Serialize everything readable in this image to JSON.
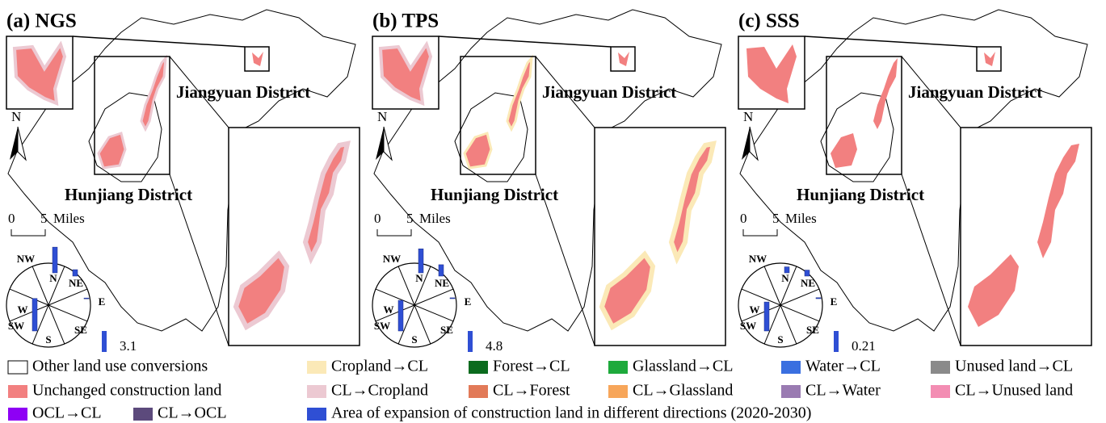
{
  "panels": [
    {
      "title": "(a) NGS",
      "district_north": "Jiangyuan District",
      "district_south": "Hunjiang District",
      "north": "N",
      "scale_start": 0,
      "scale_end": 5,
      "scale_unit": "Miles",
      "directions": [
        "NW",
        "N",
        "NE",
        "E",
        "SE",
        "S",
        "SW",
        "W"
      ],
      "expansion": [
        null,
        3.8,
        0.95,
        0.1,
        null,
        null,
        null,
        4.8
      ],
      "reference": 3.1
    },
    {
      "title": "(b) TPS",
      "district_north": "Jiangyuan District",
      "district_south": "Hunjiang District",
      "north": "N",
      "scale_start": 0,
      "scale_end": 5,
      "scale_unit": "Miles",
      "directions": [
        "NW",
        "N",
        "NE",
        "E",
        "SE",
        "S",
        "SW",
        "W"
      ],
      "expansion": [
        null,
        5.5,
        2.6,
        0.2,
        null,
        null,
        null,
        7.0
      ],
      "reference": 4.8
    },
    {
      "title": "(c) SSS",
      "district_north": "Jiangyuan District",
      "district_south": "Hunjiang District",
      "north": "N",
      "scale_start": 0,
      "scale_end": 5,
      "scale_unit": "Miles",
      "directions": [
        "NW",
        "N",
        "NE",
        "E",
        "SE",
        "S",
        "SW",
        "W"
      ],
      "expansion": [
        null,
        0.06,
        0.06,
        0.01,
        null,
        null,
        null,
        0.29
      ],
      "reference": 0.21
    }
  ],
  "legend": [
    {
      "label": "Other land use conversions",
      "color": "#ffffff"
    },
    {
      "label": "Cropland→CL",
      "color": "#fbe9b7"
    },
    {
      "label": "Forest→CL",
      "color": "#0b6b1e"
    },
    {
      "label": "Glassland→CL",
      "color": "#1eaa3c"
    },
    {
      "label": "Water→CL",
      "color": "#3a6fe0"
    },
    {
      "label": "Unused land→CL",
      "color": "#8a8a8a"
    },
    {
      "label": "Unchanged construction land",
      "color": "#f28080"
    },
    {
      "label": "CL→Cropland",
      "color": "#ecc9d2"
    },
    {
      "label": "CL→Forest",
      "color": "#e27a58"
    },
    {
      "label": "CL→Glassland",
      "color": "#f7a65a"
    },
    {
      "label": "CL→Water",
      "color": "#9a7bb2"
    },
    {
      "label": "CL→Unused land",
      "color": "#f38db3"
    },
    {
      "label": "OCL→CL",
      "color": "#8e00f5"
    },
    {
      "label": "CL→OCL",
      "color": "#5c4a7c"
    },
    {
      "label": "Area of expansion of construction land  in different directions (2020-2030)",
      "color": "#2f4fd4"
    }
  ]
}
